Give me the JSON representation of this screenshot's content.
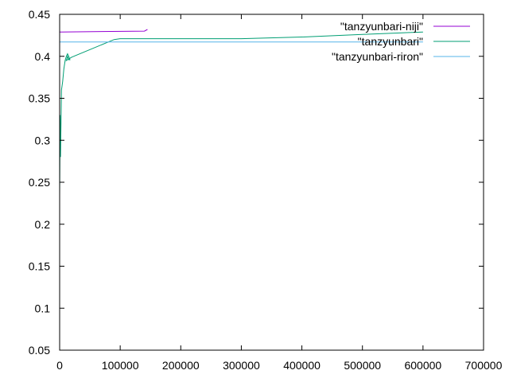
{
  "chart_data": {
    "type": "line",
    "title": "",
    "xlabel": "",
    "ylabel": "",
    "xlim": [
      0,
      700000
    ],
    "ylim": [
      0.05,
      0.45
    ],
    "grid": false,
    "legend_placement": "top-right",
    "x_ticks": [
      {
        "value": 0,
        "label": "0"
      },
      {
        "value": 100000,
        "label": "100000"
      },
      {
        "value": 200000,
        "label": "200000"
      },
      {
        "value": 300000,
        "label": "300000"
      },
      {
        "value": 400000,
        "label": "400000"
      },
      {
        "value": 500000,
        "label": "500000"
      },
      {
        "value": 600000,
        "label": "600000"
      },
      {
        "value": 700000,
        "label": "700000"
      }
    ],
    "y_ticks": [
      {
        "value": 0.05,
        "label": "0.05"
      },
      {
        "value": 0.1,
        "label": "0.1"
      },
      {
        "value": 0.15,
        "label": "0.15"
      },
      {
        "value": 0.2,
        "label": "0.2"
      },
      {
        "value": 0.25,
        "label": "0.25"
      },
      {
        "value": 0.3,
        "label": "0.3"
      },
      {
        "value": 0.35,
        "label": "0.35"
      },
      {
        "value": 0.4,
        "label": "0.4"
      },
      {
        "value": 0.45,
        "label": "0.45"
      }
    ],
    "series": [
      {
        "name": "\"tanzyunbari-niji\"",
        "color": "#9400d3",
        "x": [
          0,
          140000,
          145000
        ],
        "y": [
          0.429,
          0.43,
          0.432
        ]
      },
      {
        "name": "\"tanzyunbari\"",
        "color": "#009e73",
        "x": [
          0,
          800,
          1500,
          3000,
          5000,
          7000,
          9000,
          11000,
          13000,
          15000,
          17000,
          15000,
          13000,
          11000,
          20000,
          50000,
          90000,
          100000,
          200000,
          300000,
          400000,
          500000,
          600000
        ],
        "y": [
          0.235,
          0.33,
          0.28,
          0.36,
          0.37,
          0.385,
          0.395,
          0.4,
          0.403,
          0.4,
          0.396,
          0.396,
          0.4,
          0.395,
          0.399,
          0.408,
          0.42,
          0.421,
          0.421,
          0.421,
          0.423,
          0.426,
          0.429
        ]
      },
      {
        "name": "\"tanzyunbari-riron\"",
        "color": "#56b4e9",
        "x": [
          0,
          600000
        ],
        "y": [
          0.417,
          0.417
        ]
      }
    ]
  }
}
